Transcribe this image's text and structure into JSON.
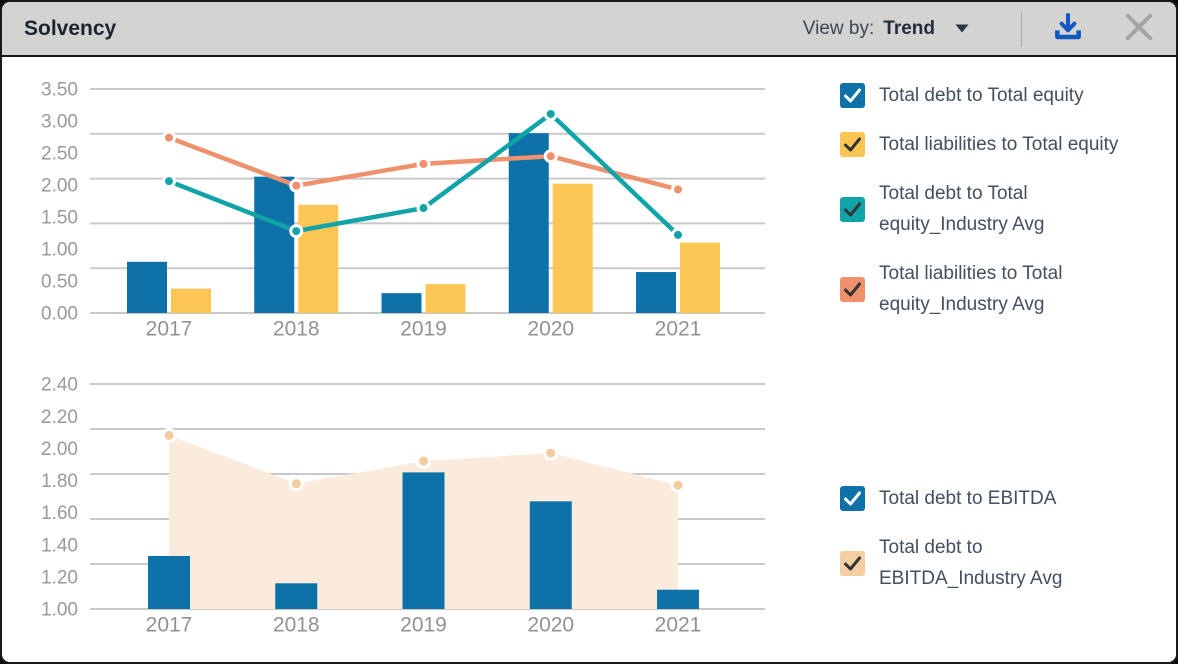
{
  "header": {
    "title": "Solvency",
    "view_by_label": "View by:",
    "view_by_value": "Trend"
  },
  "colors": {
    "header_bg": "#D3D3D2",
    "title_text": "#1B2531",
    "grid_line": "#C9C9C9",
    "axis_label": "#96999D",
    "legend_text": "#42505F",
    "download_icon": "#1257C2",
    "close_icon": "#A2A4A6",
    "bar_blue": "#0E72A9",
    "bar_yellow": "#FBC653",
    "line_teal": "#10A4A9",
    "line_orange": "#EF916C",
    "area_fill": "#FAEBDC",
    "area_dot": "#F2CC9F"
  },
  "chart_data": [
    {
      "type": "bar",
      "subtype": "combo-bar-line",
      "categories": [
        "2017",
        "2018",
        "2019",
        "2020",
        "2021"
      ],
      "xlabel": "",
      "ylabel": "",
      "ylim": [
        0,
        3.5
      ],
      "ytick_labels": [
        "3.50",
        "3.00",
        "2.50",
        "2.00",
        "1.50",
        "1.00",
        "0.50",
        "0.00"
      ],
      "gridline_count": 6,
      "grid": "on",
      "legend_position": "right",
      "series": [
        {
          "name": "Total debt to Total equity",
          "type": "bar",
          "color": "#0E72A9",
          "values": [
            0.8,
            2.13,
            0.31,
            2.81,
            0.64
          ]
        },
        {
          "name": "Total liabilities to Total equity",
          "type": "bar",
          "color": "#FBC653",
          "values": [
            0.38,
            1.69,
            0.45,
            2.02,
            1.1
          ]
        },
        {
          "name": "Total debt to Total equity_Industry Avg",
          "type": "line",
          "color": "#10A4A9",
          "values": [
            2.06,
            1.28,
            1.64,
            3.11,
            1.22
          ]
        },
        {
          "name": "Total liabilities to Total equity_Industry Avg",
          "type": "line",
          "color": "#EF916C",
          "values": [
            2.74,
            1.99,
            2.33,
            2.45,
            1.93
          ]
        }
      ]
    },
    {
      "type": "bar",
      "subtype": "combo-bar-area",
      "categories": [
        "2017",
        "2018",
        "2019",
        "2020",
        "2021"
      ],
      "xlabel": "",
      "ylabel": "",
      "ylim": [
        1.0,
        2.4
      ],
      "ytick_labels": [
        "2.40",
        "2.20",
        "2.00",
        "1.80",
        "1.60",
        "1.40",
        "1.20",
        "1.00"
      ],
      "gridline_count": 6,
      "grid": "on",
      "legend_position": "right",
      "series": [
        {
          "name": "Total debt to EBITDA",
          "type": "bar",
          "color": "#0E72A9",
          "values": [
            1.33,
            1.16,
            1.85,
            1.67,
            1.12
          ]
        },
        {
          "name": "Total debt to EBITDA_Industry Avg",
          "type": "area",
          "color": "#FAEBDC",
          "dot_color": "#F2CC9F",
          "values": [
            2.08,
            1.78,
            1.92,
            1.97,
            1.77
          ]
        }
      ]
    }
  ],
  "legends": {
    "top": {
      "items": [
        {
          "label": "Total debt to Total equity",
          "color": "#0E72A9",
          "check": "#FFFFFF"
        },
        {
          "label": "Total liabilities to Total equity",
          "color": "#FBC653",
          "check": "#333333"
        },
        {
          "label": "Total debt to Total equity_Industry Avg",
          "color": "#10A4A9",
          "check": "#333333"
        },
        {
          "label": "Total liabilities to Total equity_Industry Avg",
          "color": "#EF916C",
          "check": "#333333"
        }
      ]
    },
    "bottom": {
      "items": [
        {
          "label": "Total debt to EBITDA",
          "color": "#0E72A9",
          "check": "#FFFFFF"
        },
        {
          "label": "Total debt to EBITDA_Industry Avg",
          "color": "#F5CEA2",
          "check": "#333333"
        }
      ]
    }
  }
}
